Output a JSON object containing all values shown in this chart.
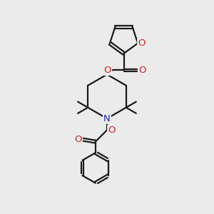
{
  "bg_color": "#ebebeb",
  "bond_color": "#1a1a1a",
  "N_color": "#2020cc",
  "O_color": "#cc2020",
  "bond_width": 1.6,
  "figsize": [
    3.0,
    3.0
  ],
  "dpi": 100,
  "xlim": [
    0,
    10
  ],
  "ylim": [
    0,
    10
  ]
}
